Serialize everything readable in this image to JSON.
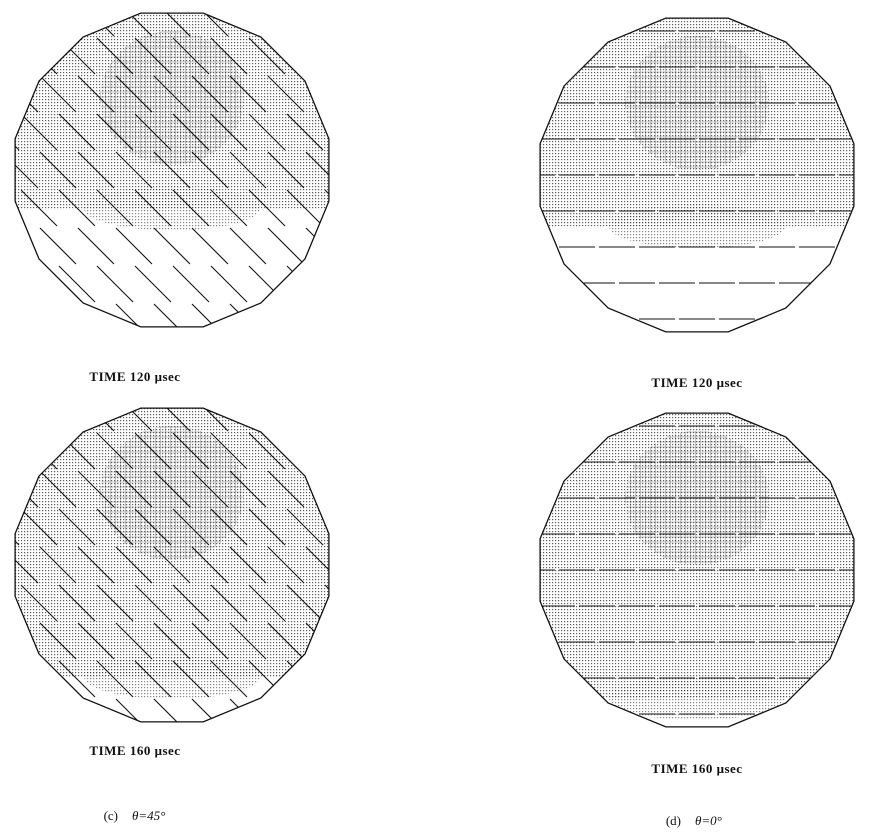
{
  "panels": [
    {
      "time_label": "TIME 120 μsec"
    },
    {
      "time_label": "TIME 120 μsec"
    },
    {
      "time_label": "TIME 160 μsec"
    },
    {
      "time_label": "TIME 160 μsec"
    }
  ],
  "columns": [
    {
      "label": "(c)",
      "angle": "θ=45°"
    },
    {
      "label": "(d)",
      "angle": "θ=0°"
    }
  ]
}
